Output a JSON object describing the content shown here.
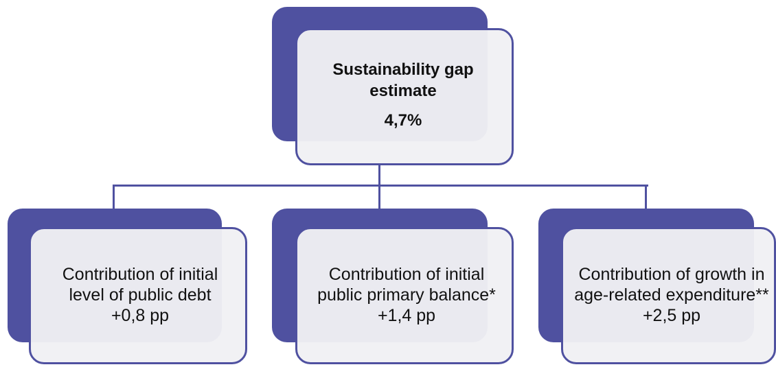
{
  "colors": {
    "primary": "#4f51a0",
    "card_fill": "#f0f0f4",
    "connector": "#4f51a0",
    "text": "#111111"
  },
  "top": {
    "title": "Sustainability gap estimate",
    "value": "4,7%"
  },
  "children": [
    {
      "label": "Contribution of initial level of public debt",
      "value": "+0,8 pp"
    },
    {
      "label": "Contribution of initial public primary balance*",
      "value": "+1,4 pp"
    },
    {
      "label": "Contribution of growth in age-related expenditure**",
      "value": "+2,5 pp"
    }
  ]
}
